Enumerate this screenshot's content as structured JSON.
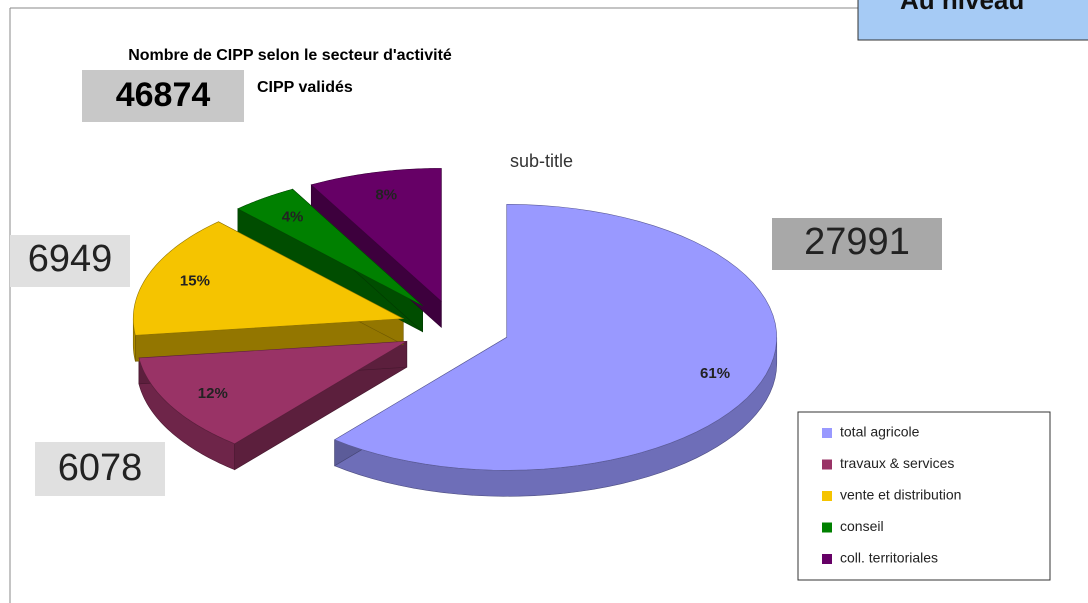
{
  "chart_data": {
    "type": "pie",
    "title": "Nombre de CIPP selon le secteur d'activité",
    "subtitle": "CIPP validés",
    "note": "sub-title",
    "banner": "Au niveau",
    "total": 46874,
    "callouts": [
      27991,
      6078,
      6949
    ],
    "categories": [
      "total agricole",
      "travaux & services",
      "vente et distribution",
      "conseil",
      "coll. territoriales"
    ],
    "values": [
      61,
      12,
      15,
      4,
      8
    ],
    "value_labels": [
      "61%",
      "12%",
      "15%",
      "4%",
      "8%"
    ],
    "colors": [
      "#9999ff",
      "#993366",
      "#f5c400",
      "#008000",
      "#660066"
    ],
    "legend": "bottom-right"
  }
}
